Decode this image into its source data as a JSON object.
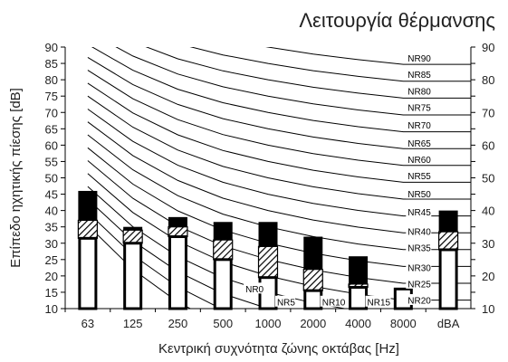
{
  "chart_data": {
    "type": "bar",
    "title": "Λειτουργία θέρμανσης",
    "xlabel": "Κεντρική συχνότητα ζώνης οκτάβας [Hz]",
    "ylabel": "Επίπεδο ηχητικής πίεσης [dB]",
    "ylim": [
      10,
      90
    ],
    "y_ticks": [
      "10",
      "15",
      "20",
      "25",
      "30",
      "35",
      "40",
      "45",
      "50",
      "55",
      "60",
      "65",
      "70",
      "75",
      "80",
      "85",
      "90"
    ],
    "categories": [
      "63",
      "125",
      "250",
      "500",
      "1000",
      "2000",
      "4000",
      "8000",
      "dBA"
    ],
    "bars": [
      {
        "category": "63",
        "white_top": 31.5,
        "hatch_top": 37.0,
        "black_top": 46.0
      },
      {
        "category": "125",
        "white_top": 30.0,
        "hatch_top": 34.0,
        "black_top": 35.0
      },
      {
        "category": "250",
        "white_top": 32.0,
        "hatch_top": 35.0,
        "black_top": 38.0
      },
      {
        "category": "500",
        "white_top": 25.0,
        "hatch_top": 31.0,
        "black_top": 36.5
      },
      {
        "category": "1000",
        "white_top": 19.5,
        "hatch_top": 29.0,
        "black_top": 36.5
      },
      {
        "category": "2000",
        "white_top": 15.5,
        "hatch_top": 22.0,
        "black_top": 32.0
      },
      {
        "category": "4000",
        "white_top": 16.5,
        "hatch_top": 17.5,
        "black_top": 26.0
      },
      {
        "category": "8000",
        "white_top": 16.0,
        "hatch_top": 16.0,
        "black_top": 16.0
      },
      {
        "category": "dBA",
        "white_top": 28.0,
        "hatch_top": 33.5,
        "black_top": 40.0
      }
    ],
    "nr_curves": [
      {
        "name": "NR0",
        "label_x": 3.5,
        "label_y": 16.0
      },
      {
        "name": "NR5",
        "label_x": 4.2,
        "label_y": 12.0
      },
      {
        "name": "NR10",
        "label_x": 5.2,
        "label_y": 12.0
      },
      {
        "name": "NR15",
        "label_x": 6.2,
        "label_y": 12.0
      },
      {
        "name": "NR20",
        "label_x": 7.1,
        "label_y": 12.5
      },
      {
        "name": "NR25",
        "label_x": 7.1,
        "label_y": 17.5
      },
      {
        "name": "NR30",
        "label_x": 7.1,
        "label_y": 22.5
      },
      {
        "name": "NR35",
        "label_x": 7.1,
        "label_y": 28.5
      },
      {
        "name": "NR40",
        "label_x": 7.1,
        "label_y": 33.5
      },
      {
        "name": "NR45",
        "label_x": 7.1,
        "label_y": 39.5
      },
      {
        "name": "NR50",
        "label_x": 7.1,
        "label_y": 45.0
      },
      {
        "name": "NR55",
        "label_x": 7.1,
        "label_y": 50.5
      },
      {
        "name": "NR60",
        "label_x": 7.1,
        "label_y": 55.5
      },
      {
        "name": "NR65",
        "label_x": 7.1,
        "label_y": 60.5
      },
      {
        "name": "NR70",
        "label_x": 7.1,
        "label_y": 66.0
      },
      {
        "name": "NR75",
        "label_x": 7.1,
        "label_y": 71.5
      },
      {
        "name": "NR80",
        "label_x": 7.1,
        "label_y": 76.5
      },
      {
        "name": "NR85",
        "label_x": 7.1,
        "label_y": 81.5
      },
      {
        "name": "NR90",
        "label_x": 7.1,
        "label_y": 86.5
      }
    ],
    "grid": false,
    "legend": "none"
  }
}
